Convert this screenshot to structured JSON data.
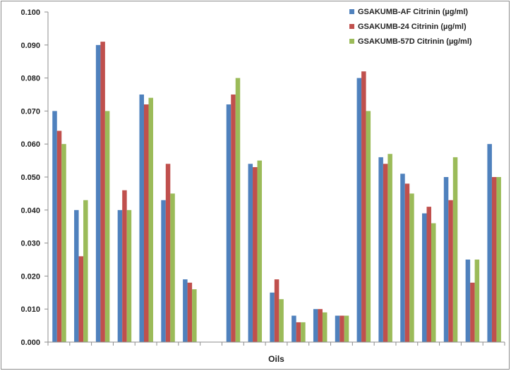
{
  "chart_data": {
    "type": "bar",
    "title": "",
    "xlabel": "Oils",
    "ylabel": "",
    "ylim": [
      0,
      0.1
    ],
    "yticks": [
      "0.000",
      "0.010",
      "0.020",
      "0.030",
      "0.040",
      "0.050",
      "0.060",
      "0.070",
      "0.080",
      "0.090",
      "0.100"
    ],
    "grid": false,
    "legend_position": "top-right",
    "categories": [
      "",
      "",
      "",
      "",
      "",
      "",
      "",
      "",
      "",
      "",
      "",
      "",
      "",
      "",
      "",
      "",
      "",
      "",
      "",
      "",
      ""
    ],
    "series": [
      {
        "name": "GSAKUMB-AF Citrinin (µg/ml)",
        "color": "#4f81bd",
        "values": [
          0.07,
          0.04,
          0.09,
          0.04,
          0.075,
          0.043,
          0.019,
          null,
          0.072,
          0.054,
          0.015,
          0.008,
          0.01,
          0.008,
          0.08,
          0.056,
          0.051,
          0.039,
          0.05,
          0.025,
          0.06
        ]
      },
      {
        "name": "GSAKUMB-24 Citrinin (µg/ml)",
        "color": "#c0504d",
        "values": [
          0.064,
          0.026,
          0.091,
          0.046,
          0.072,
          0.054,
          0.018,
          null,
          0.075,
          0.053,
          0.019,
          0.006,
          0.01,
          0.008,
          0.082,
          0.054,
          0.048,
          0.041,
          0.043,
          0.018,
          0.05
        ]
      },
      {
        "name": "GSAKUMB-57D Citrinin (µg/ml)",
        "color": "#9bbb59",
        "values": [
          0.06,
          0.043,
          0.07,
          0.04,
          0.074,
          0.045,
          0.016,
          null,
          0.08,
          0.055,
          0.013,
          0.006,
          0.009,
          0.008,
          0.07,
          0.057,
          0.045,
          0.036,
          0.056,
          0.025,
          0.05
        ]
      }
    ]
  }
}
